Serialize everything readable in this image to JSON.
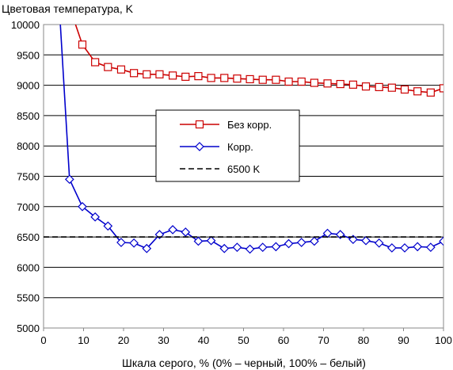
{
  "chart_data": {
    "type": "line",
    "title": "Цветовая температура, K",
    "xlabel": "Шкала серого, % (0% – черный, 100% – белый)",
    "ylabel": "",
    "xlim": [
      0,
      100
    ],
    "ylim": [
      5000,
      10000
    ],
    "x_ticks": [
      "0",
      "10",
      "20",
      "30",
      "40",
      "50",
      "60",
      "70",
      "80",
      "90",
      "100"
    ],
    "y_ticks": [
      "5000",
      "5500",
      "6000",
      "6500",
      "7000",
      "7500",
      "8000",
      "8500",
      "9000",
      "9500",
      "10000"
    ],
    "grid": "horizontal",
    "legend_position": "center",
    "series": [
      {
        "name": "Без корр.",
        "color": "#cc0000",
        "marker": "square",
        "line_start": [
          8.0,
          10000
        ],
        "x": [
          9.7,
          12.9,
          16.1,
          19.4,
          22.6,
          25.8,
          29.0,
          32.3,
          35.5,
          38.7,
          41.9,
          45.2,
          48.4,
          51.6,
          54.8,
          58.1,
          61.3,
          64.5,
          67.7,
          71.0,
          74.2,
          77.4,
          80.6,
          83.9,
          87.1,
          90.3,
          93.5,
          96.8,
          100.0
        ],
        "y": [
          9670,
          9380,
          9300,
          9260,
          9200,
          9180,
          9180,
          9160,
          9140,
          9150,
          9120,
          9120,
          9110,
          9100,
          9090,
          9090,
          9060,
          9060,
          9040,
          9030,
          9020,
          9010,
          8980,
          8970,
          8960,
          8930,
          8900,
          8880,
          8950
        ]
      },
      {
        "name": "Корр.",
        "color": "#0000cc",
        "marker": "diamond",
        "line_start": [
          4.2,
          10000
        ],
        "x": [
          6.5,
          9.7,
          12.9,
          16.1,
          19.4,
          22.6,
          25.8,
          29.0,
          32.3,
          35.5,
          38.7,
          41.9,
          45.2,
          48.4,
          51.6,
          54.8,
          58.1,
          61.3,
          64.5,
          67.7,
          71.0,
          74.2,
          77.4,
          80.6,
          83.9,
          87.1,
          90.3,
          93.5,
          96.8,
          100.0
        ],
        "y": [
          7450,
          7000,
          6830,
          6680,
          6410,
          6400,
          6310,
          6540,
          6620,
          6580,
          6430,
          6440,
          6310,
          6330,
          6300,
          6330,
          6340,
          6390,
          6410,
          6430,
          6560,
          6540,
          6460,
          6440,
          6400,
          6320,
          6320,
          6340,
          6330,
          6430
        ]
      },
      {
        "name": "6500 K",
        "color": "#000000",
        "style": "dashed",
        "x": [
          0,
          100
        ],
        "y": [
          6500,
          6500
        ]
      }
    ]
  }
}
